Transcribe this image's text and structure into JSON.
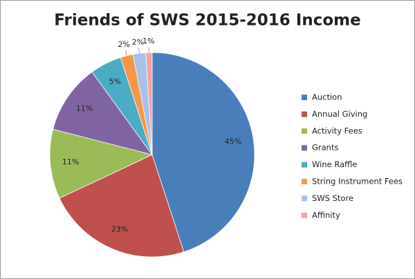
{
  "chart_data": {
    "type": "pie",
    "title": "Friends of SWS 2015-2016 Income",
    "categories": [
      "Auction",
      "Annual Giving",
      "Activity Fees",
      "Grants",
      "Wine Raffle",
      "String Instrument Fees",
      "SWS Store",
      "Affinity"
    ],
    "values": [
      45,
      23,
      11,
      11,
      5,
      2,
      2,
      1
    ],
    "value_labels": [
      "45%",
      "23%",
      "11%",
      "11%",
      "5%",
      "2%",
      "2%",
      "1%"
    ],
    "colors": [
      "#4a7ebb",
      "#c0504d",
      "#9bbb59",
      "#8064a2",
      "#4bacc6",
      "#f79646",
      "#a7c1ea",
      "#f2a3a1"
    ],
    "legend": "right"
  }
}
